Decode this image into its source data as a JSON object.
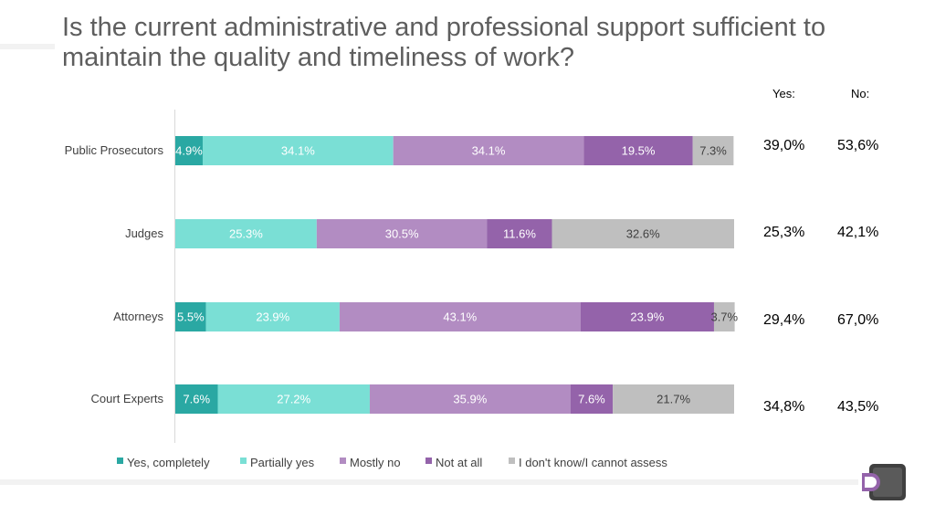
{
  "title": "Is the current administrative and professional support sufficient to maintain the quality and timeliness of work?",
  "summary_headers": {
    "yes": "Yes:",
    "no": "No:"
  },
  "summary_rows": [
    {
      "yes": "39,0%",
      "no": "53,6%"
    },
    {
      "yes": "25,3%",
      "no": "42,1%"
    },
    {
      "yes": "29,4%",
      "no": "67,0%"
    },
    {
      "yes": "34,8%",
      "no": "43,5%"
    }
  ],
  "chart_data": {
    "type": "bar",
    "orientation": "horizontal",
    "stacked": "100%",
    "categories": [
      "Public Prosecutors",
      "Judges",
      "Attorneys",
      "Court Experts"
    ],
    "series": [
      {
        "name": "Yes, completely",
        "color": "#2aa8a3",
        "values": [
          4.9,
          0,
          5.5,
          7.6
        ],
        "labels": [
          "4.9%",
          "",
          "5.5%",
          "7.6%"
        ]
      },
      {
        "name": "Partially yes",
        "color": "#7adfd5",
        "values": [
          34.1,
          25.3,
          23.9,
          27.2
        ],
        "labels": [
          "34.1%",
          "25.3%",
          "23.9%",
          "27.2%"
        ]
      },
      {
        "name": "Mostly no",
        "color": "#b28cc2",
        "values": [
          34.1,
          30.5,
          43.1,
          35.9
        ],
        "labels": [
          "34.1%",
          "30.5%",
          "43.1%",
          "35.9%"
        ]
      },
      {
        "name": "Not at all",
        "color": "#9463aa",
        "values": [
          19.5,
          11.6,
          23.9,
          7.6
        ],
        "labels": [
          "19.5%",
          "11.6%",
          "23.9%",
          "7.6%"
        ]
      },
      {
        "name": "I don't know/I cannot assess",
        "color": "#bfbfbf",
        "values": [
          7.3,
          32.6,
          3.7,
          21.7
        ],
        "labels": [
          "7.3%",
          "32.6%",
          "3.7%",
          "21.7%"
        ]
      }
    ],
    "legend_position": "bottom",
    "grid": false
  }
}
